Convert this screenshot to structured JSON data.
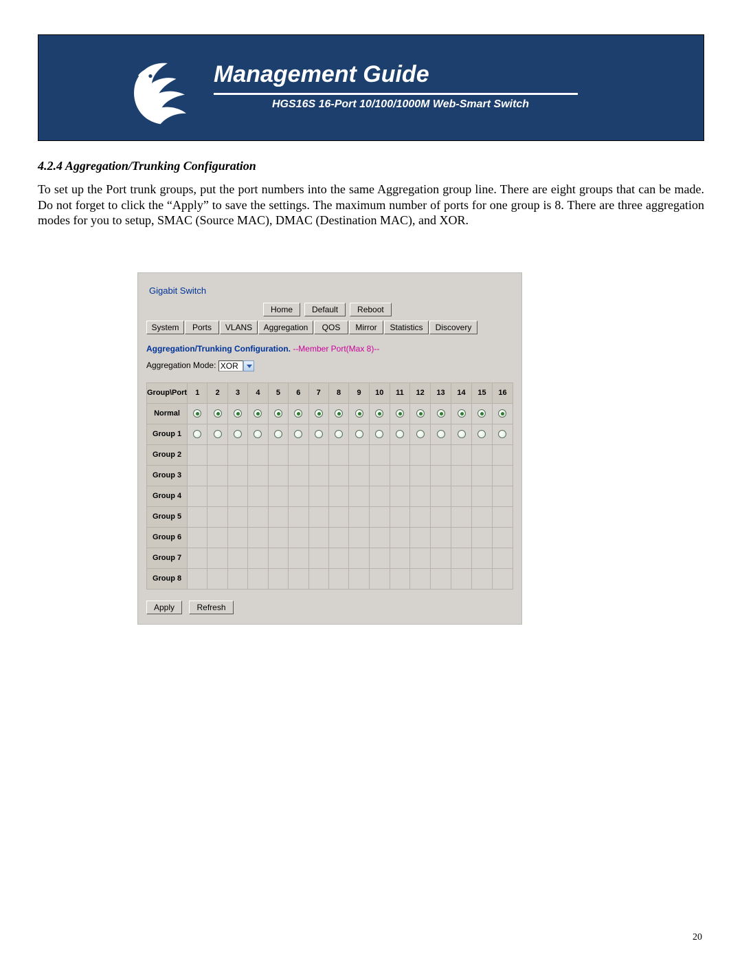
{
  "banner": {
    "title": "Management Guide",
    "subtitle": "HGS16S  16-Port 10/100/1000M Web-Smart Switch",
    "bg_color": "#1c3f6e",
    "text_color": "#ffffff"
  },
  "section": {
    "heading": "4.2.4 Aggregation/Trunking Configuration",
    "paragraph": "To set up the Port trunk groups, put the port numbers into the same Aggregation group line. There are eight groups that can be made.  Do not forget to click the “Apply” to save the settings.  The maximum number of ports for one group is 8.  There are three aggregation modes for you to setup, SMAC (Source MAC), DMAC (Destination MAC), and XOR."
  },
  "screenshot": {
    "brand": "Gigabit Switch",
    "bg_color": "#d6d3ce",
    "top_buttons": [
      "Home",
      "Default",
      "Reboot"
    ],
    "tabs": [
      "System",
      "Ports",
      "VLANS",
      "Aggregation",
      "QOS",
      "Mirror",
      "Statistics",
      "Discovery"
    ],
    "tab_widths": [
      55,
      50,
      55,
      80,
      50,
      50,
      65,
      70
    ],
    "config_title_strong": "Aggregation/Trunking Configuration.",
    "config_title_note": " --Member Port(Max 8)--",
    "mode_label": "Aggregation Mode:",
    "mode_value": "XOR",
    "header_first": "Group\\Port",
    "ports": [
      "1",
      "2",
      "3",
      "4",
      "5",
      "6",
      "7",
      "8",
      "9",
      "10",
      "11",
      "12",
      "13",
      "14",
      "15",
      "16"
    ],
    "rows": [
      {
        "label": "Normal",
        "radios": "checked"
      },
      {
        "label": "Group 1",
        "radios": "unchecked"
      },
      {
        "label": "Group 2",
        "radios": "none"
      },
      {
        "label": "Group 3",
        "radios": "none"
      },
      {
        "label": "Group 4",
        "radios": "none"
      },
      {
        "label": "Group 5",
        "radios": "none"
      },
      {
        "label": "Group 6",
        "radios": "none"
      },
      {
        "label": "Group 7",
        "radios": "none"
      },
      {
        "label": "Group 8",
        "radios": "none"
      }
    ],
    "apply_label": "Apply",
    "refresh_label": "Refresh",
    "accent_color": "#003399",
    "note_color": "#cc0099"
  },
  "page_number": "20"
}
